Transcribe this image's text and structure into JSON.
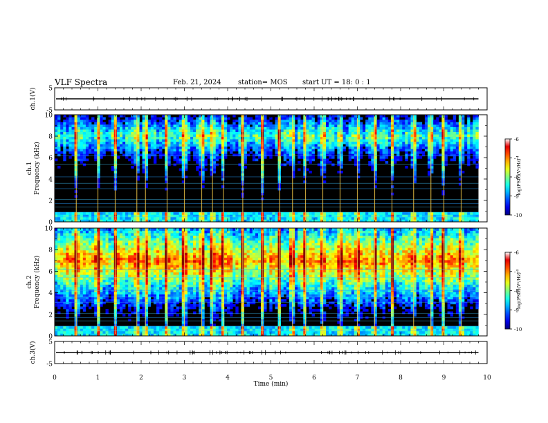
{
  "header": {
    "title": "VLF Spectra",
    "date": "Feb. 21, 2024",
    "station": "station= MOS",
    "start": "start  UT  =   18: 0  : 1"
  },
  "chart_data": [
    {
      "type": "line",
      "panel": "ch1-waveform",
      "ylabel": "ch.1(V)",
      "ylim": [
        -5,
        5
      ],
      "yticks": [
        "5",
        "-5"
      ],
      "level": 0,
      "note_series": "flat trace near 0 V with small spikes"
    },
    {
      "type": "heatmap",
      "panel": "ch1-spectrogram",
      "ylabel": "ch.1\nFrequency (kHz)",
      "ylim": [
        0,
        10
      ],
      "yticks": [
        "0",
        "2",
        "4",
        "6",
        "8",
        "10"
      ],
      "colorbar": {
        "label": "log(PSD)(V²/Hz)",
        "ticks": [
          "-6",
          "-7",
          "-8",
          "-9",
          "-10"
        ],
        "range": [
          -10,
          -6
        ]
      },
      "dominant_band_khz": [
        6.5,
        9.5
      ],
      "band_level": -8.2,
      "spike_times_min": [
        0.5,
        1.0,
        1.4,
        1.9,
        2.1,
        2.6,
        3.0,
        3.4,
        3.65,
        3.9,
        4.35,
        4.8,
        5.2,
        5.5,
        5.8,
        6.2,
        6.6,
        7.0,
        7.4,
        7.8,
        8.3,
        8.7,
        9.0,
        9.4
      ]
    },
    {
      "type": "heatmap",
      "panel": "ch2-spectrogram",
      "ylabel": "ch.2\nFrequency (kHz)",
      "ylim": [
        0,
        10
      ],
      "yticks": [
        "0",
        "2",
        "4",
        "6",
        "8",
        "10"
      ],
      "colorbar": {
        "label": "log(PSD)(V²/Hz)",
        "ticks": [
          "-6",
          "-7",
          "-8",
          "-9",
          "-10"
        ],
        "range": [
          -10,
          -6
        ]
      },
      "dominant_band_khz": [
        5.0,
        9.0
      ],
      "band_level": -7.1,
      "spike_times_min": [
        0.5,
        1.0,
        1.4,
        1.9,
        2.1,
        2.6,
        3.0,
        3.4,
        3.65,
        3.9,
        4.35,
        4.8,
        5.2,
        5.5,
        5.8,
        6.2,
        6.6,
        7.0,
        7.4,
        7.8,
        8.3,
        8.7,
        9.0,
        9.4
      ]
    },
    {
      "type": "line",
      "panel": "ch3-waveform",
      "ylabel": "ch.3(V)",
      "ylim": [
        -5,
        5
      ],
      "yticks": [
        "5",
        "-5"
      ],
      "level": 0,
      "note_series": "flat trace near 0 V"
    }
  ],
  "xaxis": {
    "label": "Time  (min)",
    "range": [
      0,
      10
    ],
    "ticks": [
      "0",
      "1",
      "2",
      "3",
      "4",
      "5",
      "6",
      "7",
      "8",
      "9",
      "10"
    ],
    "data_end_min": 9.8
  }
}
